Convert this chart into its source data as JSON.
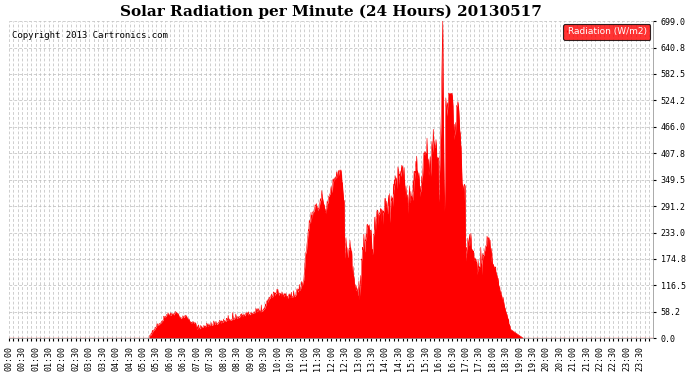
{
  "title": "Solar Radiation per Minute (24 Hours) 20130517",
  "copyright_text": "Copyright 2013 Cartronics.com",
  "legend_label": "Radiation (W/m2)",
  "ylim": [
    0.0,
    699.0
  ],
  "yticks": [
    0.0,
    58.2,
    116.5,
    174.8,
    233.0,
    291.2,
    349.5,
    407.8,
    466.0,
    524.2,
    582.5,
    640.8,
    699.0
  ],
  "fill_color": "#ff0000",
  "line_color": "#ff0000",
  "bg_color": "#ffffff",
  "grid_color": "#bbbbbb",
  "title_fontsize": 11,
  "tick_fontsize": 6,
  "copyright_fontsize": 6.5,
  "figwidth": 6.9,
  "figheight": 3.75,
  "dpi": 100
}
